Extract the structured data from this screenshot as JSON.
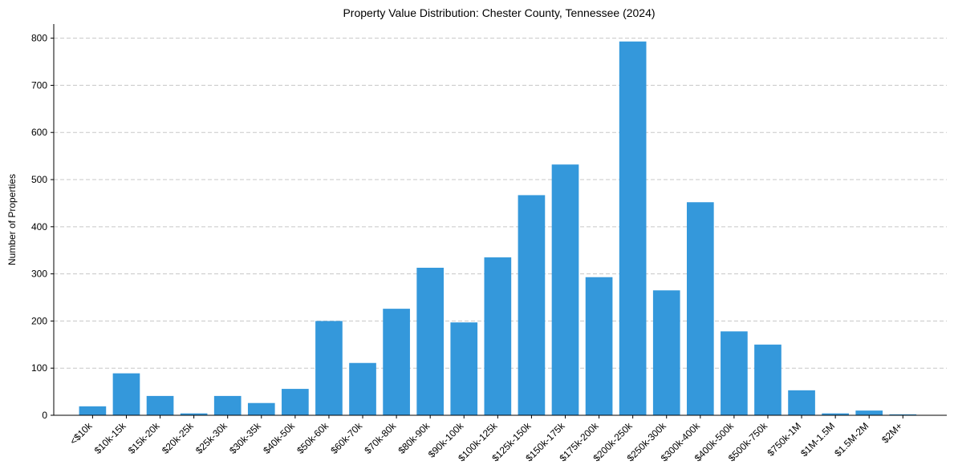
{
  "chart_data": {
    "type": "bar",
    "title": "Property Value Distribution: Chester County, Tennessee (2024)",
    "xlabel": "",
    "ylabel": "Number of Properties",
    "ylim": [
      0,
      830
    ],
    "yticks": [
      0,
      100,
      200,
      300,
      400,
      500,
      600,
      700,
      800
    ],
    "ytick_labels": [
      "0",
      "100",
      "200",
      "300",
      "400",
      "500",
      "600",
      "700",
      "800"
    ],
    "grid": true,
    "bar_color": "#3498db",
    "categories": [
      "<$10k",
      "$10k-15k",
      "$15k-20k",
      "$20k-25k",
      "$25k-30k",
      "$30k-35k",
      "$40k-50k",
      "$50k-60k",
      "$60k-70k",
      "$70k-80k",
      "$80k-90k",
      "$90k-100k",
      "$100k-125k",
      "$125k-150k",
      "$150k-175k",
      "$175k-200k",
      "$200k-250k",
      "$250k-300k",
      "$300k-400k",
      "$400k-500k",
      "$500k-750k",
      "$750k-1M",
      "$1M-1.5M",
      "$1.5M-2M",
      "$2M+"
    ],
    "values": [
      19,
      89,
      41,
      4,
      41,
      26,
      56,
      200,
      111,
      226,
      313,
      197,
      335,
      467,
      532,
      293,
      793,
      265,
      452,
      178,
      150,
      53,
      4,
      10,
      2
    ]
  }
}
